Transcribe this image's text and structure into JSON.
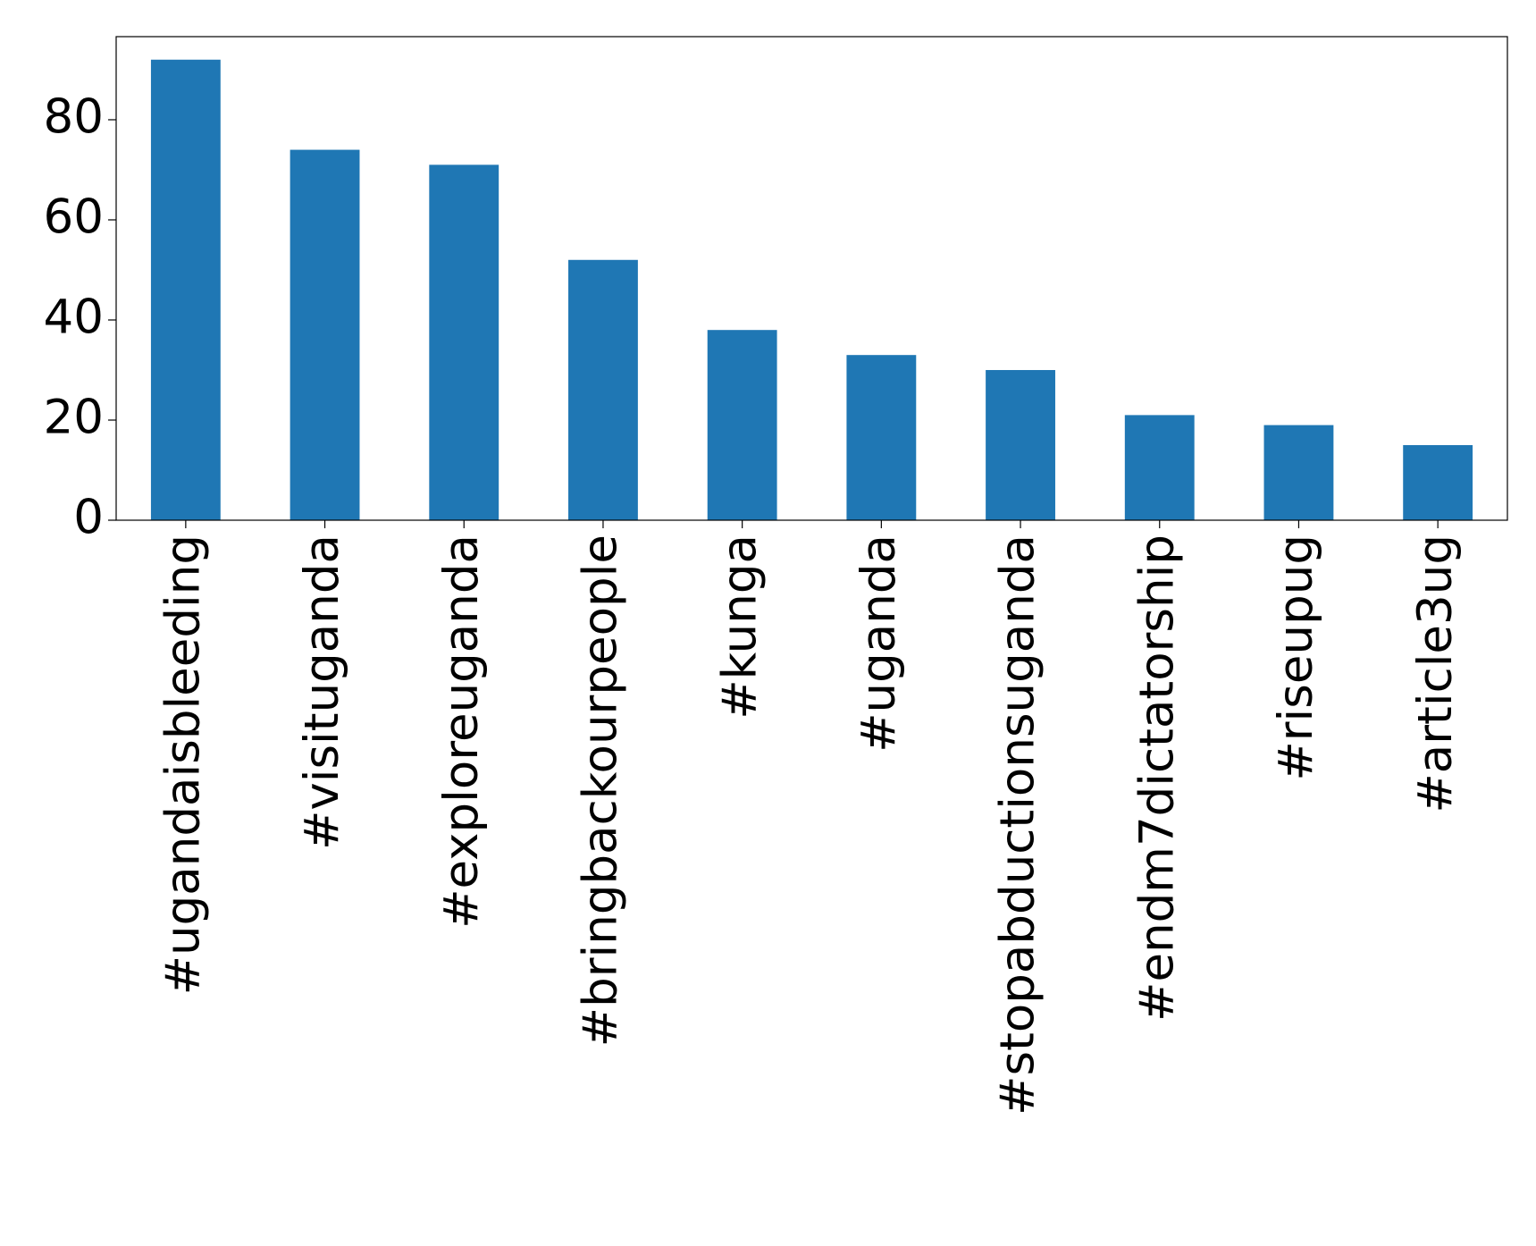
{
  "chart_data": {
    "type": "bar",
    "categories": [
      "#ugandaisbleeding",
      "#visituganda",
      "#exploreuganda",
      "#bringbackourpeople",
      "#kunga",
      "#uganda",
      "#stopabductionsuganda",
      "#endm7dictatorship",
      "#riseupug",
      "#article3ug"
    ],
    "values": [
      92,
      74,
      71,
      52,
      38,
      33,
      30,
      21,
      19,
      15
    ],
    "color": "#1f77b4",
    "ylim": [
      0,
      96.6
    ],
    "yticks": [
      0,
      20,
      40,
      60,
      80
    ],
    "grid": false
  }
}
